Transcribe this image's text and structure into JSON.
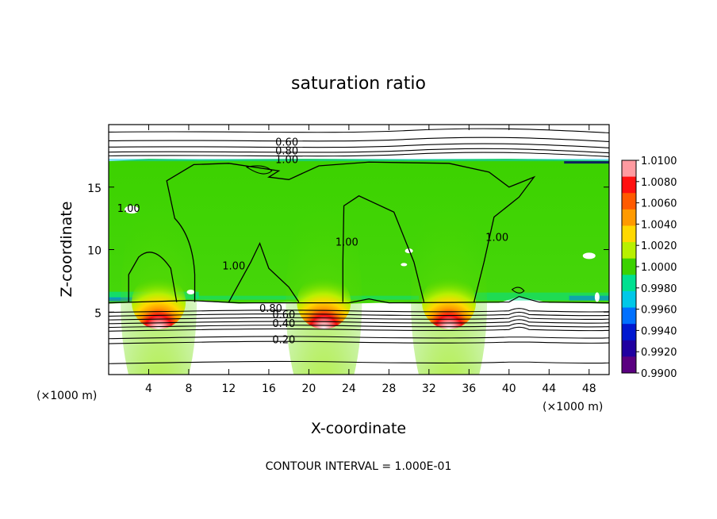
{
  "chart_data": {
    "type": "heatmap",
    "title": "saturation ratio",
    "xlabel": "X-coordinate",
    "ylabel": "Z-coordinate",
    "x_unit_label": "(×1000 m)",
    "xlim": [
      0,
      50
    ],
    "ylim": [
      0,
      20
    ],
    "x_ticks": [
      4,
      8,
      12,
      16,
      20,
      24,
      28,
      32,
      36,
      40,
      44,
      48
    ],
    "y_ticks": [
      5,
      10,
      15
    ],
    "footnote": "CONTOUR INTERVAL = 1.000E-01",
    "colorbar": {
      "min": 0.99,
      "max": 1.01,
      "ticks": [
        "1.0100",
        "1.0080",
        "1.0060",
        "1.0040",
        "1.0020",
        "1.0000",
        "0.9980",
        "0.9960",
        "0.9940",
        "0.9920",
        "0.9900"
      ],
      "colors": [
        "#ff9aa0",
        "#ff1010",
        "#ff5a00",
        "#ff9a00",
        "#ffd800",
        "#b8f000",
        "#3cd200",
        "#00e090",
        "#00c8e8",
        "#0070ff",
        "#0018d0",
        "#2000a0",
        "#5a0080"
      ]
    },
    "cloud_layer": {
      "z_bottom": 5.8,
      "z_top": 17.2,
      "value": 1.0
    },
    "cloud_bases": [
      {
        "x": 5.0,
        "value": 1.009
      },
      {
        "x": 21.5,
        "value": 1.008
      },
      {
        "x": 34.0,
        "value": 1.009
      }
    ],
    "contour_labels": [
      {
        "text": "0.60",
        "x": 17.8,
        "y": 18.5
      },
      {
        "text": "0.80",
        "x": 17.8,
        "y": 17.8
      },
      {
        "text": "1.00",
        "x": 17.8,
        "y": 17.1
      },
      {
        "text": "1.00",
        "x": 12.5,
        "y": 8.6
      },
      {
        "text": "1.00",
        "x": 23.8,
        "y": 10.5
      },
      {
        "text": "1.00",
        "x": 38.8,
        "y": 10.9
      },
      {
        "text": "1.00",
        "x": 2.0,
        "y": 13.2
      },
      {
        "text": "0.80",
        "x": 16.2,
        "y": 5.2
      },
      {
        "text": "0.60",
        "x": 17.5,
        "y": 4.7
      },
      {
        "text": "0.40",
        "x": 17.5,
        "y": 4.0
      },
      {
        "text": "0.20",
        "x": 17.5,
        "y": 2.7
      }
    ]
  }
}
